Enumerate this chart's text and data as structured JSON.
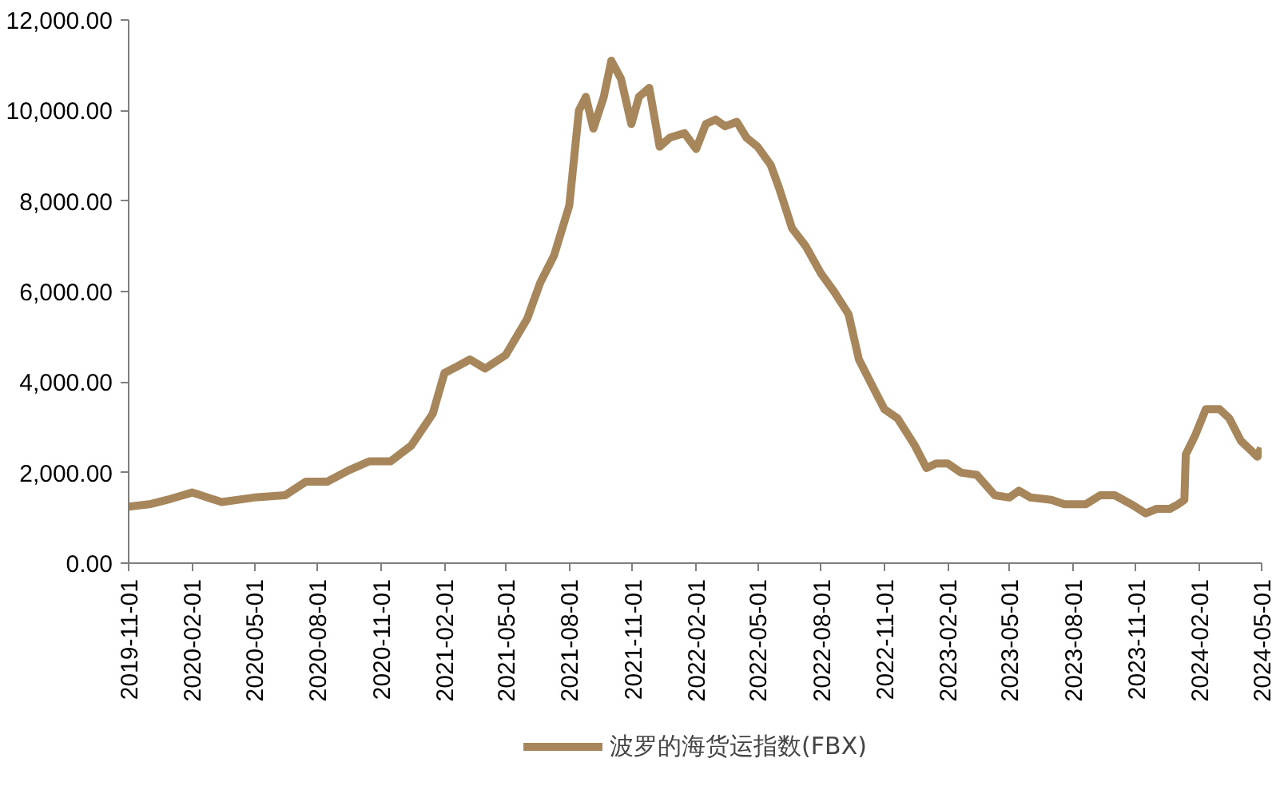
{
  "chart_data": {
    "type": "line",
    "x": [
      "2019-11-01",
      "2019-12-01",
      "2020-01-01",
      "2020-02-01",
      "2020-03-15",
      "2020-05-01",
      "2020-06-15",
      "2020-07-15",
      "2020-08-15",
      "2020-09-15",
      "2020-10-15",
      "2020-11-15",
      "2020-12-15",
      "2021-01-15",
      "2021-02-01",
      "2021-02-20",
      "2021-03-10",
      "2021-04-01",
      "2021-05-01",
      "2021-06-01",
      "2021-06-20",
      "2021-07-10",
      "2021-08-01",
      "2021-08-15",
      "2021-08-25",
      "2021-09-05",
      "2021-09-20",
      "2021-10-01",
      "2021-10-15",
      "2021-10-30",
      "2021-11-10",
      "2021-11-25",
      "2021-12-10",
      "2021-12-25",
      "2022-01-15",
      "2022-02-01",
      "2022-02-15",
      "2022-03-01",
      "2022-03-15",
      "2022-04-01",
      "2022-04-15",
      "2022-05-01",
      "2022-05-20",
      "2022-06-01",
      "2022-06-20",
      "2022-07-10",
      "2022-08-01",
      "2022-08-20",
      "2022-09-10",
      "2022-09-25",
      "2022-10-15",
      "2022-11-01",
      "2022-11-20",
      "2022-12-15",
      "2023-01-01",
      "2023-01-15",
      "2023-02-01",
      "2023-02-20",
      "2023-03-15",
      "2023-04-10",
      "2023-05-01",
      "2023-05-15",
      "2023-06-01",
      "2023-07-01",
      "2023-07-20",
      "2023-08-20",
      "2023-09-10",
      "2023-10-01",
      "2023-10-25",
      "2023-11-15",
      "2023-12-01",
      "2023-12-20",
      "2024-01-01",
      "2024-01-10",
      "2024-01-12",
      "2024-01-25",
      "2024-02-10",
      "2024-03-01",
      "2024-03-15",
      "2024-04-01",
      "2024-04-15",
      "2024-04-25",
      "2024-04-30"
    ],
    "series": [
      {
        "name": "波罗的海货运指数(FBX)",
        "color": "#a8865c",
        "values": [
          1250,
          1300,
          1420,
          1560,
          1350,
          1450,
          1500,
          1800,
          1800,
          2050,
          2250,
          2250,
          2600,
          3300,
          4200,
          4350,
          4500,
          4300,
          4600,
          5400,
          6200,
          6800,
          7900,
          10000,
          10300,
          9600,
          10300,
          11100,
          10700,
          9700,
          10300,
          10500,
          9200,
          9400,
          9500,
          9150,
          9700,
          9800,
          9650,
          9750,
          9400,
          9200,
          8800,
          8300,
          7400,
          7000,
          6400,
          6000,
          5500,
          4500,
          3900,
          3400,
          3200,
          2600,
          2100,
          2200,
          2200,
          2000,
          1950,
          1500,
          1450,
          1600,
          1450,
          1400,
          1300,
          1300,
          1500,
          1500,
          1300,
          1100,
          1200,
          1200,
          1300,
          1400,
          2400,
          2800,
          3400,
          3400,
          3200,
          2700,
          2500,
          2350,
          2550
        ]
      }
    ],
    "xlim": [
      "2019-11-01",
      "2024-05-01"
    ],
    "xticks": [
      "2019-11-01",
      "2020-02-01",
      "2020-05-01",
      "2020-08-01",
      "2020-11-01",
      "2021-02-01",
      "2021-05-01",
      "2021-08-01",
      "2021-11-01",
      "2022-02-01",
      "2022-05-01",
      "2022-08-01",
      "2022-11-01",
      "2023-02-01",
      "2023-05-01",
      "2023-08-01",
      "2023-11-01",
      "2024-02-01",
      "2024-05-01"
    ],
    "ylim": [
      0,
      12000
    ],
    "yticks": [
      {
        "value": 0,
        "label": "0.00"
      },
      {
        "value": 2000,
        "label": "2,000.00"
      },
      {
        "value": 4000,
        "label": "4,000.00"
      },
      {
        "value": 6000,
        "label": "6,000.00"
      },
      {
        "value": 8000,
        "label": "8,000.00"
      },
      {
        "value": 10000,
        "label": "10,000.00"
      },
      {
        "value": 12000,
        "label": "12,000.00"
      }
    ],
    "grid": false,
    "legend": "bottom",
    "line_style": "solid"
  }
}
